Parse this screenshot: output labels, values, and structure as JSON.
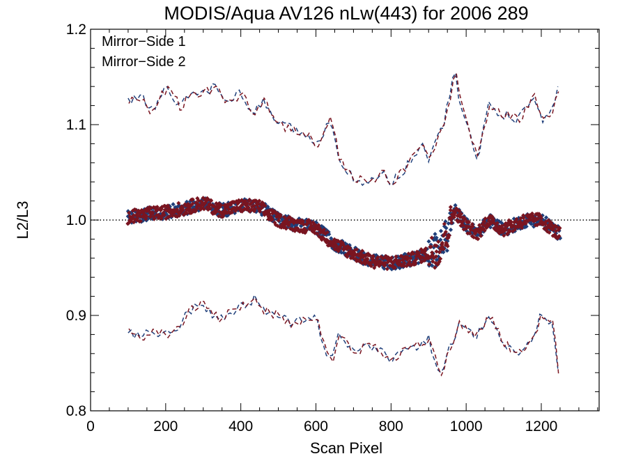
{
  "chart_data": {
    "type": "scatter",
    "title": "MODIS/Aqua AV126 nLw(443) for 2006 289",
    "xlabel": "Scan Pixel",
    "ylabel": "L2/L3",
    "xlim": [
      0,
      1354
    ],
    "ylim": [
      0.8,
      1.2
    ],
    "x_ticks": [
      0,
      200,
      400,
      600,
      800,
      1000,
      1200
    ],
    "x_tick_labels": [
      "0",
      "200",
      "400",
      "600",
      "800",
      "1000",
      "1200"
    ],
    "y_ticks": [
      0.8,
      0.9,
      1.0,
      1.1,
      1.2
    ],
    "y_tick_labels": [
      "0.8",
      "0.9",
      "1.0",
      "1.1",
      "1.2"
    ],
    "reference_line": 1.0,
    "legend_position": "top-left",
    "colors": {
      "ms1": "#1f3f7a",
      "ms2": "#7a1520"
    },
    "series": [
      {
        "name": "Mirror−Side 1",
        "color": "#1f3f7a"
      },
      {
        "name": "Mirror−Side 2",
        "color": "#7a1520"
      }
    ],
    "mean_profile": {
      "x": [
        100,
        150,
        200,
        250,
        300,
        350,
        400,
        450,
        500,
        550,
        600,
        650,
        700,
        750,
        800,
        850,
        900,
        930,
        950,
        970,
        1000,
        1030,
        1060,
        1100,
        1130,
        1160,
        1200,
        1250
      ],
      "y": [
        1.003,
        1.006,
        1.008,
        1.012,
        1.018,
        1.01,
        1.015,
        1.014,
        1.0,
        0.995,
        0.992,
        0.975,
        0.965,
        0.957,
        0.955,
        0.958,
        0.965,
        0.97,
        0.985,
        1.01,
        0.995,
        0.985,
        1.0,
        0.99,
        0.995,
        1.0,
        1.0,
        0.985
      ]
    },
    "upper_envelope": {
      "x": [
        100,
        140,
        160,
        200,
        240,
        260,
        300,
        340,
        360,
        400,
        430,
        460,
        500,
        540,
        580,
        600,
        640,
        660,
        700,
        740,
        780,
        800,
        840,
        880,
        900,
        940,
        970,
        980,
        1000,
        1030,
        1060,
        1100,
        1140,
        1180,
        1200,
        1230,
        1250
      ],
      "y": [
        1.124,
        1.13,
        1.112,
        1.138,
        1.118,
        1.13,
        1.135,
        1.14,
        1.12,
        1.133,
        1.11,
        1.125,
        1.1,
        1.095,
        1.09,
        1.075,
        1.11,
        1.065,
        1.045,
        1.037,
        1.05,
        1.04,
        1.055,
        1.08,
        1.065,
        1.1,
        1.158,
        1.13,
        1.1,
        1.065,
        1.12,
        1.11,
        1.105,
        1.13,
        1.105,
        1.115,
        1.15
      ]
    },
    "lower_envelope": {
      "x": [
        100,
        140,
        160,
        200,
        240,
        260,
        300,
        340,
        360,
        400,
        440,
        460,
        500,
        540,
        580,
        600,
        640,
        660,
        700,
        740,
        780,
        800,
        840,
        880,
        900,
        930,
        950,
        980,
        1000,
        1030,
        1060,
        1100,
        1140,
        1180,
        1200,
        1230,
        1250
      ],
      "y": [
        0.882,
        0.878,
        0.885,
        0.88,
        0.89,
        0.905,
        0.912,
        0.895,
        0.9,
        0.91,
        0.918,
        0.905,
        0.9,
        0.89,
        0.9,
        0.895,
        0.848,
        0.88,
        0.86,
        0.87,
        0.86,
        0.855,
        0.865,
        0.87,
        0.875,
        0.835,
        0.86,
        0.89,
        0.885,
        0.88,
        0.9,
        0.87,
        0.86,
        0.875,
        0.902,
        0.89,
        0.82
      ]
    }
  }
}
